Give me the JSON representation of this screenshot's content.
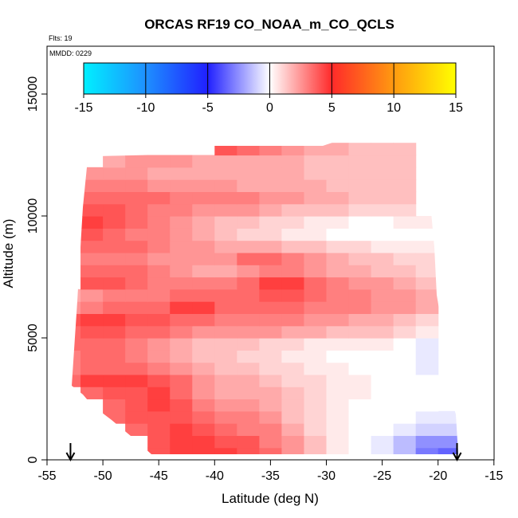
{
  "chart_data": {
    "type": "heatmap",
    "title": "ORCAS RF19 CO_NOAA_m_CO_QCLS",
    "annotations": {
      "flights": "Flts: 19",
      "date": "MMDD: 0229"
    },
    "xlabel": "Latitude (deg N)",
    "ylabel": "Altitude (m)",
    "xlim": [
      -55,
      -15
    ],
    "ylim": [
      0,
      16500
    ],
    "x_ticks": [
      -55,
      -50,
      -45,
      -40,
      -35,
      -30,
      -25,
      -20,
      -15
    ],
    "y_ticks": [
      0,
      5000,
      10000,
      15000
    ],
    "grid": false,
    "colorbar": {
      "range": [
        -15,
        15
      ],
      "ticks": [
        -15,
        -10,
        -5,
        0,
        5,
        10,
        15
      ],
      "stops": [
        {
          "value": -15,
          "color": "#00f0ff"
        },
        {
          "value": -10,
          "color": "#1e90ff"
        },
        {
          "value": -5,
          "color": "#2020ff"
        },
        {
          "value": 0,
          "color": "#ffffff"
        },
        {
          "value": 5,
          "color": "#ff2a2a"
        },
        {
          "value": 10,
          "color": "#ff9a10"
        },
        {
          "value": 15,
          "color": "#ffff00"
        }
      ]
    },
    "arrows_x": [
      -52.9,
      -18.3
    ],
    "field": {
      "x_centers": [
        -53,
        -51,
        -49,
        -47,
        -45,
        -43,
        -41,
        -39,
        -37,
        -35,
        -33,
        -31,
        -29,
        -27,
        -25,
        -23,
        -21,
        -19
      ],
      "y_centers": [
        250,
        750,
        1250,
        1750,
        2250,
        2750,
        3250,
        3750,
        4250,
        4750,
        5250,
        5750,
        6250,
        6750,
        7250,
        7750,
        8250,
        8750,
        9250,
        9750,
        10250,
        10750,
        11250,
        11750,
        12250,
        12750
      ],
      "values": [
        [
          null,
          null,
          null,
          null,
          4.0,
          4.5,
          4.5,
          4.5,
          4.0,
          3.5,
          2.5,
          1.5,
          0.5,
          0.0,
          -0.5,
          -1.5,
          -3.0,
          -3.5
        ],
        [
          null,
          null,
          null,
          null,
          4.0,
          4.5,
          4.5,
          4.0,
          4.0,
          3.0,
          2.5,
          1.5,
          0.5,
          0.0,
          -0.5,
          -1.5,
          -2.5,
          -2.5
        ],
        [
          null,
          null,
          null,
          3.5,
          4.0,
          4.5,
          4.0,
          3.5,
          3.0,
          3.0,
          2.0,
          1.0,
          0.5,
          0.0,
          0.0,
          -0.5,
          -1.0,
          -1.0
        ],
        [
          null,
          null,
          3.5,
          4.0,
          4.0,
          4.0,
          3.5,
          3.0,
          3.0,
          2.5,
          1.5,
          1.0,
          0.5,
          0.0,
          0.0,
          0.0,
          -0.5,
          -0.5
        ],
        [
          null,
          null,
          3.5,
          4.0,
          4.5,
          4.0,
          3.0,
          2.5,
          2.5,
          2.0,
          1.5,
          1.0,
          0.5,
          0.0,
          0.0,
          0.0,
          0.0,
          null
        ],
        [
          null,
          3.5,
          4.0,
          4.0,
          4.5,
          3.5,
          2.5,
          2.0,
          2.0,
          2.0,
          1.5,
          1.0,
          0.5,
          0.5,
          0.0,
          0.0,
          0.0,
          null
        ],
        [
          3.5,
          4.5,
          4.5,
          4.5,
          4.0,
          3.5,
          2.5,
          2.0,
          2.0,
          1.5,
          1.0,
          1.0,
          0.5,
          0.5,
          0.0,
          0.0,
          0.0,
          null
        ],
        [
          3.0,
          3.5,
          3.5,
          3.5,
          3.0,
          2.5,
          2.0,
          1.5,
          1.5,
          1.0,
          1.0,
          0.5,
          0.5,
          0.0,
          0.0,
          0.0,
          -0.5,
          null
        ],
        [
          3.0,
          3.5,
          3.5,
          3.0,
          2.5,
          2.0,
          1.5,
          1.5,
          1.0,
          1.0,
          0.5,
          0.5,
          0.0,
          0.0,
          0.0,
          0.0,
          -0.5,
          null
        ],
        [
          3.5,
          3.5,
          3.5,
          3.0,
          2.5,
          2.0,
          1.5,
          1.5,
          1.5,
          1.0,
          1.0,
          0.5,
          0.5,
          0.5,
          0.5,
          0.0,
          -0.5,
          null
        ],
        [
          3.5,
          4.0,
          4.0,
          3.5,
          3.5,
          3.0,
          2.5,
          2.5,
          2.5,
          2.5,
          2.0,
          2.0,
          1.5,
          1.5,
          1.5,
          1.0,
          0.5,
          null
        ],
        [
          4.0,
          4.5,
          4.5,
          4.0,
          4.0,
          3.5,
          3.5,
          3.0,
          3.0,
          3.0,
          3.0,
          2.5,
          2.5,
          2.0,
          2.0,
          1.5,
          1.0,
          null
        ],
        [
          2.5,
          3.0,
          3.5,
          3.5,
          3.5,
          4.5,
          4.5,
          3.5,
          3.5,
          3.5,
          3.5,
          3.0,
          3.0,
          3.0,
          2.5,
          2.5,
          2.0,
          null
        ],
        [
          2.0,
          2.5,
          3.0,
          3.0,
          3.0,
          3.5,
          3.5,
          3.5,
          3.5,
          4.0,
          4.0,
          3.5,
          3.0,
          3.0,
          2.5,
          2.5,
          2.0,
          null
        ],
        [
          null,
          4.0,
          4.0,
          3.5,
          3.0,
          3.0,
          3.0,
          3.0,
          3.5,
          4.5,
          4.5,
          3.5,
          3.0,
          2.5,
          2.5,
          2.0,
          1.5,
          null
        ],
        [
          null,
          3.5,
          3.5,
          3.5,
          3.0,
          2.5,
          2.0,
          2.0,
          2.5,
          3.0,
          3.0,
          2.5,
          2.0,
          2.0,
          1.5,
          1.5,
          1.0,
          null
        ],
        [
          null,
          3.0,
          3.0,
          3.0,
          2.5,
          2.5,
          2.5,
          2.5,
          3.5,
          3.5,
          3.0,
          2.5,
          2.0,
          1.5,
          1.5,
          1.0,
          1.0,
          null
        ],
        [
          null,
          3.5,
          3.5,
          3.5,
          3.0,
          2.5,
          2.5,
          2.0,
          2.0,
          2.0,
          1.5,
          1.5,
          1.0,
          1.0,
          0.5,
          0.5,
          0.5,
          null
        ],
        [
          null,
          4.0,
          3.5,
          3.0,
          3.0,
          2.5,
          2.0,
          1.5,
          1.0,
          1.0,
          0.5,
          0.5,
          0.0,
          0.0,
          0.0,
          0.0,
          0.0,
          null
        ],
        [
          null,
          4.5,
          4.0,
          3.5,
          3.0,
          2.5,
          2.0,
          1.5,
          1.5,
          1.0,
          1.0,
          0.5,
          0.5,
          0.0,
          0.0,
          0.5,
          0.5,
          null
        ],
        [
          null,
          4.0,
          4.0,
          3.5,
          3.0,
          3.0,
          2.5,
          2.5,
          2.5,
          2.0,
          1.5,
          1.5,
          1.5,
          1.0,
          1.0,
          1.0,
          null,
          null
        ],
        [
          null,
          3.5,
          3.5,
          3.5,
          3.5,
          3.0,
          3.0,
          3.0,
          3.0,
          2.5,
          2.5,
          2.0,
          2.0,
          1.5,
          1.5,
          1.5,
          null,
          null
        ],
        [
          null,
          3.0,
          3.0,
          3.0,
          2.5,
          2.5,
          2.5,
          2.5,
          2.0,
          2.0,
          2.0,
          2.0,
          1.5,
          1.5,
          1.5,
          1.5,
          null,
          null
        ],
        [
          null,
          2.5,
          2.5,
          2.5,
          2.0,
          2.0,
          2.0,
          2.0,
          2.0,
          2.0,
          2.0,
          1.5,
          1.5,
          1.5,
          1.5,
          1.5,
          null,
          null
        ],
        [
          null,
          null,
          2.0,
          2.5,
          2.5,
          2.5,
          2.0,
          2.0,
          2.0,
          2.0,
          2.0,
          1.5,
          1.5,
          1.5,
          1.5,
          1.5,
          null,
          null
        ],
        [
          null,
          null,
          null,
          null,
          null,
          null,
          null,
          4.0,
          3.5,
          3.0,
          2.5,
          2.0,
          2.0,
          1.5,
          1.5,
          1.5,
          null,
          null
        ]
      ]
    }
  }
}
